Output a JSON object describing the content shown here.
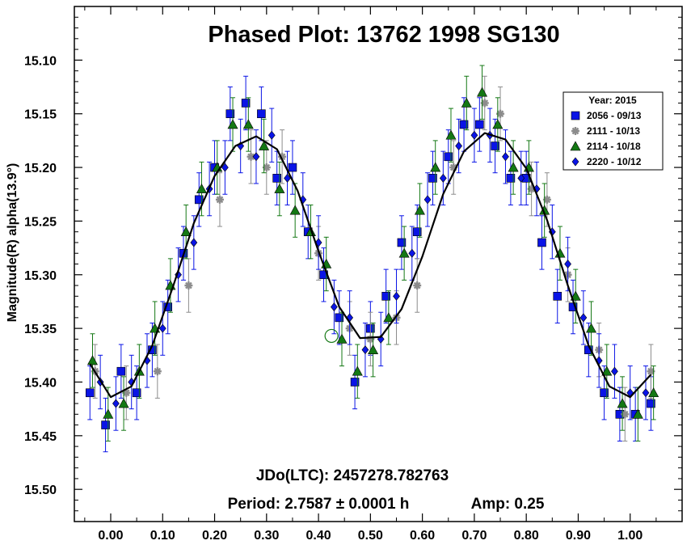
{
  "chart_data": {
    "type": "scatter",
    "title": "Phased Plot: 13762 1998 SG130",
    "xlabel": "",
    "ylabel": "Magnitude(R) alpha(13.9°)",
    "xlim": [
      -0.07,
      1.1
    ],
    "ylim": [
      15.05,
      15.53
    ],
    "y_inverted": true,
    "x_ticks": [
      "0.00",
      "0.10",
      "0.20",
      "0.30",
      "0.40",
      "0.50",
      "0.60",
      "0.70",
      "0.80",
      "0.90",
      "1.00"
    ],
    "y_ticks": [
      "15.10",
      "15.15",
      "15.20",
      "15.25",
      "15.30",
      "15.35",
      "15.40",
      "15.45",
      "15.50"
    ],
    "legend": {
      "title": "Year: 2015",
      "placement": "top-right",
      "entries": [
        {
          "label": "2056 - 09/13",
          "marker": "square",
          "color": "#0a14e6"
        },
        {
          "label": "2111 - 10/13",
          "marker": "asterisk",
          "color": "#8c8c8c"
        },
        {
          "label": "2114 - 10/18",
          "marker": "triangle",
          "color": "#147814"
        },
        {
          "label": "2220 - 10/12",
          "marker": "diamond",
          "color": "#0a14e6"
        }
      ]
    },
    "fit_curve": {
      "mean": 15.295,
      "amplitude": 0.25,
      "color": "#000000",
      "x": [
        -0.04,
        0.0,
        0.04,
        0.08,
        0.12,
        0.16,
        0.2,
        0.24,
        0.28,
        0.32,
        0.36,
        0.4,
        0.44,
        0.48,
        0.52,
        0.56,
        0.6,
        0.64,
        0.68,
        0.72,
        0.76,
        0.8,
        0.84,
        0.88,
        0.92,
        0.96,
        1.0,
        1.04
      ],
      "y": [
        15.383,
        15.414,
        15.404,
        15.366,
        15.311,
        15.252,
        15.208,
        15.18,
        15.171,
        15.183,
        15.222,
        15.278,
        15.33,
        15.359,
        15.358,
        15.332,
        15.283,
        15.225,
        15.185,
        15.168,
        15.174,
        15.201,
        15.249,
        15.31,
        15.366,
        15.404,
        15.414,
        15.393
      ]
    },
    "outlier_marker": {
      "x": 0.425,
      "y": 15.357,
      "marker": "open-circle",
      "color": "#147814"
    },
    "series": [
      {
        "name": "2056 - 09/13",
        "marker": "square",
        "color": "#0a14e6",
        "x": [
          -0.04,
          -0.01,
          0.02,
          0.05,
          0.08,
          0.11,
          0.14,
          0.17,
          0.2,
          0.23,
          0.26,
          0.29,
          0.32,
          0.35,
          0.38,
          0.41,
          0.44,
          0.47,
          0.5,
          0.53,
          0.56,
          0.59,
          0.62,
          0.65,
          0.68,
          0.71,
          0.74,
          0.77,
          0.8,
          0.83,
          0.86,
          0.89,
          0.92,
          0.95,
          0.98,
          1.01,
          1.04
        ],
        "y": [
          15.41,
          15.44,
          15.39,
          15.41,
          15.37,
          15.33,
          15.28,
          15.23,
          15.2,
          15.15,
          15.14,
          15.15,
          15.21,
          15.2,
          15.26,
          15.3,
          15.34,
          15.4,
          15.35,
          15.32,
          15.27,
          15.26,
          15.21,
          15.19,
          15.16,
          15.16,
          15.18,
          15.21,
          15.21,
          15.27,
          15.32,
          15.33,
          15.37,
          15.41,
          15.43,
          15.43,
          15.42
        ]
      },
      {
        "name": "2111 - 10/13",
        "marker": "asterisk",
        "color": "#8c8c8c",
        "x": [
          -0.03,
          0.03,
          0.09,
          0.15,
          0.21,
          0.27,
          0.3,
          0.33,
          0.4,
          0.46,
          0.5,
          0.55,
          0.59,
          0.66,
          0.72,
          0.75,
          0.81,
          0.84,
          0.88,
          0.94,
          0.99,
          1.04
        ],
        "y": [
          15.39,
          15.41,
          15.39,
          15.31,
          15.23,
          15.19,
          15.2,
          15.19,
          15.28,
          15.35,
          15.36,
          15.34,
          15.31,
          15.2,
          15.14,
          15.15,
          15.22,
          15.23,
          15.3,
          15.37,
          15.43,
          15.39
        ]
      },
      {
        "name": "2114 - 10/18",
        "marker": "triangle",
        "color": "#147814",
        "x": [
          -0.035,
          -0.005,
          0.025,
          0.055,
          0.085,
          0.115,
          0.145,
          0.175,
          0.205,
          0.235,
          0.265,
          0.295,
          0.325,
          0.355,
          0.385,
          0.415,
          0.445,
          0.475,
          0.505,
          0.535,
          0.565,
          0.595,
          0.625,
          0.655,
          0.685,
          0.715,
          0.745,
          0.775,
          0.805,
          0.835,
          0.865,
          0.895,
          0.925,
          0.955,
          0.985,
          1.015,
          1.045
        ],
        "y": [
          15.38,
          15.43,
          15.42,
          15.39,
          15.35,
          15.31,
          15.26,
          15.22,
          15.2,
          15.16,
          15.16,
          15.18,
          15.22,
          15.24,
          15.26,
          15.29,
          15.36,
          15.39,
          15.37,
          15.34,
          15.28,
          15.24,
          15.2,
          15.17,
          15.14,
          15.13,
          15.16,
          15.2,
          15.2,
          15.24,
          15.28,
          15.32,
          15.35,
          15.39,
          15.42,
          15.43,
          15.41
        ]
      },
      {
        "name": "2220 - 10/12",
        "marker": "diamond",
        "color": "#0a14e6",
        "x": [
          -0.02,
          0.01,
          0.04,
          0.07,
          0.1,
          0.13,
          0.16,
          0.19,
          0.22,
          0.25,
          0.28,
          0.31,
          0.34,
          0.37,
          0.4,
          0.43,
          0.46,
          0.49,
          0.52,
          0.55,
          0.58,
          0.61,
          0.64,
          0.67,
          0.7,
          0.73,
          0.76,
          0.79,
          0.82,
          0.85,
          0.88,
          0.91,
          0.94,
          0.97,
          1.0,
          1.03
        ],
        "y": [
          15.4,
          15.42,
          15.4,
          15.38,
          15.35,
          15.3,
          15.27,
          15.22,
          15.2,
          15.18,
          15.19,
          15.17,
          15.21,
          15.23,
          15.27,
          15.33,
          15.34,
          15.37,
          15.36,
          15.32,
          15.28,
          15.23,
          15.21,
          15.18,
          15.17,
          15.17,
          15.19,
          15.21,
          15.22,
          15.26,
          15.29,
          15.34,
          15.38,
          15.39,
          15.41,
          15.41
        ]
      }
    ],
    "annotations": [
      "JDo(LTC): 2457278.782763",
      "Period: 2.7587 ± 0.0001 h",
      "Amp: 0.25"
    ]
  }
}
